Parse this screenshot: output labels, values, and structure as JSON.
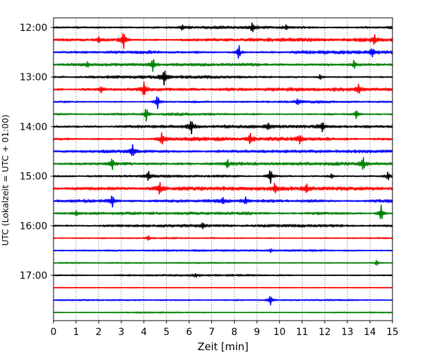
{
  "chart_data": {
    "type": "line",
    "chart_kind": "helicorder",
    "title": "",
    "xlabel": "Zeit  [min]",
    "ylabel": "UTC (Lokalzeit = UTC + 01:00)",
    "xlim": [
      0,
      15
    ],
    "x_ticks": [
      "0",
      "1",
      "2",
      "3",
      "4",
      "5",
      "6",
      "7",
      "8",
      "9",
      "10",
      "11",
      "12",
      "13",
      "14",
      "15"
    ],
    "y_ticks": [
      "12:00",
      "13:00",
      "14:00",
      "15:00",
      "16:00",
      "17:00"
    ],
    "grid": "vertical dotted lines at each minute",
    "trace_interval_minutes": 15,
    "color_cycle": [
      "#000000",
      "#ff0000",
      "#0000ff",
      "#008000"
    ],
    "series": [
      {
        "start": "12:00",
        "color": "#000000",
        "level": 0.7,
        "spikes": [
          [
            5.7,
            0.5
          ],
          [
            8.8,
            1.0
          ],
          [
            10.3,
            0.5
          ]
        ]
      },
      {
        "start": "12:15",
        "color": "#ff0000",
        "level": 0.85,
        "spikes": [
          [
            2.0,
            0.6
          ],
          [
            3.1,
            1.8
          ],
          [
            14.2,
            1.0
          ]
        ]
      },
      {
        "start": "12:30",
        "color": "#0000ff",
        "level": 0.8,
        "spikes": [
          [
            8.2,
            1.6
          ],
          [
            14.1,
            0.8
          ]
        ]
      },
      {
        "start": "12:45",
        "color": "#008000",
        "level": 0.7,
        "spikes": [
          [
            1.5,
            0.5
          ],
          [
            4.4,
            1.4
          ],
          [
            13.3,
            0.9
          ]
        ]
      },
      {
        "start": "13:00",
        "color": "#000000",
        "level": 0.75,
        "spikes": [
          [
            4.9,
            1.6
          ],
          [
            11.8,
            0.5
          ]
        ]
      },
      {
        "start": "13:15",
        "color": "#ff0000",
        "level": 0.85,
        "spikes": [
          [
            2.1,
            0.6
          ],
          [
            4.0,
            1.4
          ],
          [
            13.5,
            0.9
          ]
        ]
      },
      {
        "start": "13:30",
        "color": "#0000ff",
        "level": 0.6,
        "spikes": [
          [
            4.6,
            1.5
          ],
          [
            10.8,
            0.5
          ]
        ]
      },
      {
        "start": "13:45",
        "color": "#008000",
        "level": 0.7,
        "spikes": [
          [
            4.1,
            1.5
          ],
          [
            13.4,
            0.9
          ]
        ]
      },
      {
        "start": "14:00",
        "color": "#000000",
        "level": 0.75,
        "spikes": [
          [
            6.1,
            1.4
          ],
          [
            11.9,
            1.0
          ],
          [
            9.5,
            0.6
          ]
        ]
      },
      {
        "start": "14:15",
        "color": "#ff0000",
        "level": 0.9,
        "spikes": [
          [
            4.8,
            1.3
          ],
          [
            8.7,
            1.2
          ],
          [
            10.9,
            0.8
          ]
        ]
      },
      {
        "start": "14:30",
        "color": "#0000ff",
        "level": 0.7,
        "spikes": [
          [
            3.5,
            1.2
          ]
        ]
      },
      {
        "start": "14:45",
        "color": "#008000",
        "level": 0.8,
        "spikes": [
          [
            2.6,
            1.2
          ],
          [
            7.7,
            0.9
          ],
          [
            13.7,
            1.4
          ]
        ]
      },
      {
        "start": "15:00",
        "color": "#000000",
        "level": 0.75,
        "spikes": [
          [
            4.2,
            1.0
          ],
          [
            9.6,
            1.6
          ],
          [
            12.3,
            0.5
          ],
          [
            14.8,
            0.9
          ]
        ]
      },
      {
        "start": "15:15",
        "color": "#ff0000",
        "level": 0.9,
        "spikes": [
          [
            4.7,
            1.3
          ],
          [
            9.8,
            1.0
          ],
          [
            11.2,
            0.8
          ]
        ]
      },
      {
        "start": "15:30",
        "color": "#0000ff",
        "level": 0.85,
        "spikes": [
          [
            2.6,
            1.3
          ],
          [
            7.5,
            0.6
          ],
          [
            8.5,
            0.7
          ]
        ]
      },
      {
        "start": "15:45",
        "color": "#008000",
        "level": 0.7,
        "spikes": [
          [
            1.0,
            0.5
          ],
          [
            14.5,
            1.7
          ]
        ]
      },
      {
        "start": "16:00",
        "color": "#000000",
        "level": 0.65,
        "spikes": [
          [
            6.6,
            0.5
          ]
        ]
      },
      {
        "start": "16:15",
        "color": "#ff0000",
        "level": 0.45,
        "spikes": [
          [
            4.2,
            0.5
          ]
        ]
      },
      {
        "start": "16:30",
        "color": "#0000ff",
        "level": 0.45,
        "spikes": [
          [
            9.6,
            0.3
          ]
        ]
      },
      {
        "start": "16:45",
        "color": "#008000",
        "level": 0.35,
        "spikes": [
          [
            14.3,
            0.6
          ]
        ]
      },
      {
        "start": "17:00",
        "color": "#000000",
        "level": 0.45,
        "spikes": [
          [
            6.3,
            0.3
          ]
        ]
      },
      {
        "start": "17:15",
        "color": "#ff0000",
        "level": 0.2,
        "spikes": []
      },
      {
        "start": "17:30",
        "color": "#0000ff",
        "level": 0.35,
        "spikes": [
          [
            9.6,
            1.0
          ]
        ]
      },
      {
        "start": "17:45",
        "color": "#008000",
        "level": 0.4,
        "spikes": []
      }
    ]
  }
}
